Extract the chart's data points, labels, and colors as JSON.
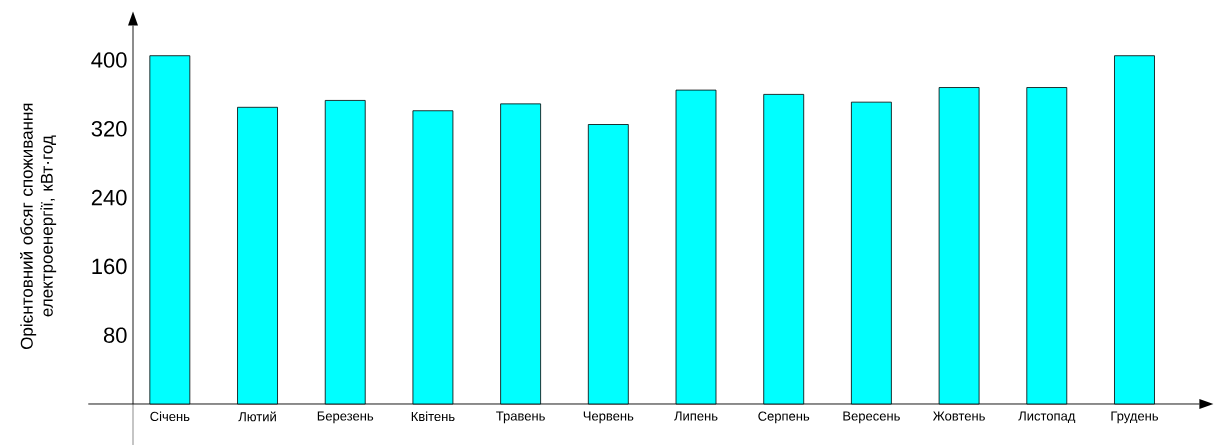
{
  "chart_data": {
    "type": "bar",
    "ylabel": "Орієнтовний обсяг споживання електроенергії, кВт·год",
    "categories": [
      "Січень",
      "Лютий",
      "Березень",
      "Квітень",
      "Травень",
      "Червень",
      "Липень",
      "Серпень",
      "Вересень",
      "Жовтень",
      "Листопад",
      "Грудень"
    ],
    "values": [
      405,
      345,
      353,
      341,
      349,
      325,
      365,
      360,
      351,
      368,
      368,
      405
    ],
    "color": "#00ffff",
    "ylim": [
      0,
      440
    ],
    "yticks": [
      80,
      160,
      240,
      320,
      400
    ],
    "grid": false
  }
}
